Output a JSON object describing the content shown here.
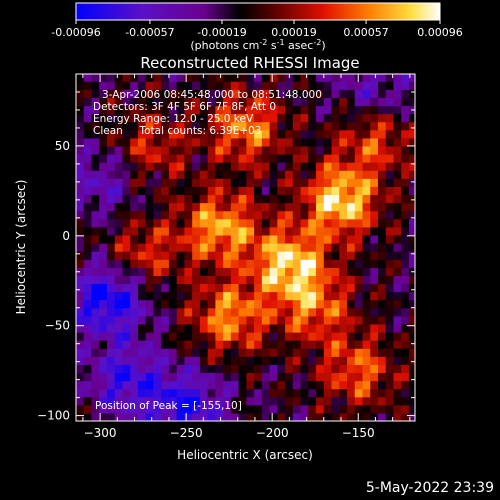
{
  "colorbar": {
    "tick_labels": [
      "-0.00096",
      "-0.00057",
      "-0.00019",
      "0.00019",
      "0.00057",
      "0.00096"
    ],
    "unit_label_main": "(photons cm",
    "unit_label_sup1": "-2",
    "unit_label_mid": " s",
    "unit_label_sup2": "-1",
    "unit_label_mid2": " asec",
    "unit_label_sup3": "-2",
    "unit_label_end": ")",
    "colors": [
      "#0000ff",
      "#6a00b4",
      "#000000",
      "#a00000",
      "#ff2a00",
      "#ff9a00",
      "#ffff88",
      "#ffffff"
    ]
  },
  "plot": {
    "title": "Reconstructed RHESSI Image",
    "xlabel": "Heliocentric X (arcsec)",
    "ylabel": "Heliocentric Y (arcsec)",
    "info": [
      "3-Apr-2006 08:45:48.000 to 08:51:48.000",
      "Detectors: 3F 4F 5F 6F 7F 8F, Att 0",
      "Energy Range: 12.0 - 25.0 keV",
      "Clean     Total counts: 6.39E+03"
    ],
    "peak_label": "Position of Peak = [-155,10]"
  },
  "footer": {
    "date": "5-May-2022 23:39"
  },
  "chart_data": {
    "type": "heatmap",
    "title": "Reconstructed RHESSI Image",
    "xlabel": "Heliocentric X (arcsec)",
    "ylabel": "Heliocentric Y (arcsec)",
    "xlim": [
      -314,
      -117
    ],
    "ylim": [
      -103,
      90
    ],
    "x_ticks": [
      -300,
      -250,
      -200,
      -150
    ],
    "y_ticks": [
      -100,
      -50,
      0,
      50
    ],
    "zlim": [
      -0.00096,
      0.00096
    ],
    "peak": [
      -155,
      10
    ],
    "hot_spots": [
      {
        "x": -160,
        "y": 20,
        "v": 0.00096
      },
      {
        "x": -190,
        "y": -15,
        "v": 0.0009
      },
      {
        "x": -230,
        "y": 5,
        "v": 0.0008
      },
      {
        "x": -215,
        "y": 60,
        "v": 0.0007
      },
      {
        "x": -225,
        "y": -45,
        "v": 0.00072
      },
      {
        "x": -175,
        "y": -40,
        "v": 0.0006
      },
      {
        "x": -150,
        "y": -75,
        "v": 0.0006
      },
      {
        "x": -270,
        "y": 50,
        "v": 0.00045
      },
      {
        "x": -275,
        "y": -10,
        "v": 0.0005
      },
      {
        "x": -140,
        "y": 55,
        "v": 0.00055
      }
    ],
    "cold_spots": [
      {
        "x": -295,
        "y": -35,
        "v": -0.00085
      },
      {
        "x": -250,
        "y": -95,
        "v": -0.0007
      },
      {
        "x": -285,
        "y": -80,
        "v": -0.0006
      },
      {
        "x": -140,
        "y": 80,
        "v": -0.0004
      },
      {
        "x": -300,
        "y": 30,
        "v": -0.0004
      }
    ]
  }
}
